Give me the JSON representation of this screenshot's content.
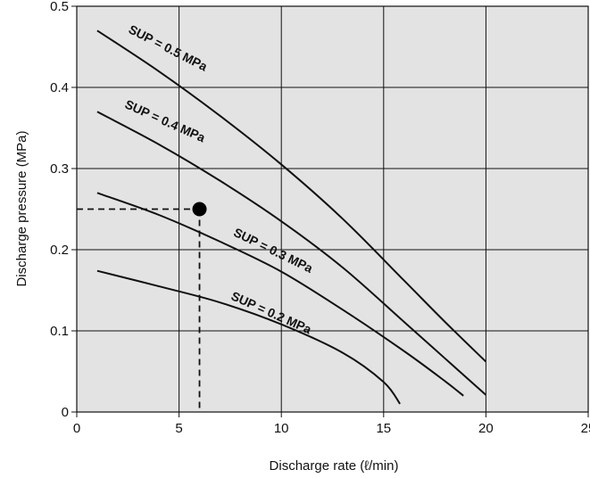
{
  "chart_data": {
    "type": "line",
    "xlabel": "Discharge rate (ℓ/min)",
    "ylabel": "Discharge pressure (MPa)",
    "xlim": [
      0,
      25
    ],
    "ylim": [
      0,
      0.5
    ],
    "x_ticks": [
      "0",
      "5",
      "10",
      "15",
      "20",
      "25"
    ],
    "y_ticks": [
      "0",
      "0.1",
      "0.2",
      "0.3",
      "0.4",
      "0.5"
    ],
    "grid": true,
    "plot_background": "#e3e3e3",
    "series": [
      {
        "name": "SUP = 0.5 MPa",
        "x": [
          1,
          4,
          7,
          10,
          13,
          16,
          18,
          20
        ],
        "y": [
          0.47,
          0.42,
          0.365,
          0.305,
          0.238,
          0.162,
          0.111,
          0.062
        ]
      },
      {
        "name": "SUP = 0.4 MPa",
        "x": [
          1,
          4,
          7,
          10,
          13,
          16,
          18,
          20
        ],
        "y": [
          0.37,
          0.33,
          0.285,
          0.235,
          0.178,
          0.111,
          0.066,
          0.021
        ]
      },
      {
        "name": "SUP = 0.3 MPa",
        "x": [
          1,
          4,
          7,
          10,
          13,
          16,
          18,
          18.9
        ],
        "y": [
          0.27,
          0.243,
          0.21,
          0.173,
          0.126,
          0.075,
          0.038,
          0.02
        ]
      },
      {
        "name": "SUP = 0.2 MPa",
        "x": [
          1,
          4,
          7,
          10,
          13,
          15,
          15.8
        ],
        "y": [
          0.174,
          0.155,
          0.135,
          0.108,
          0.073,
          0.037,
          0.01
        ]
      }
    ],
    "operating_point": {
      "x": 6,
      "y": 0.25
    }
  }
}
